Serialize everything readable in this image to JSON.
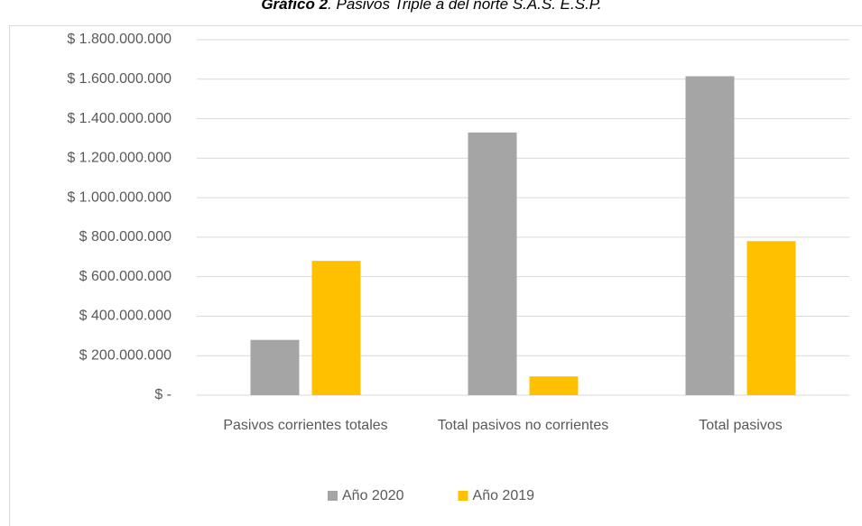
{
  "chart_data": {
    "type": "bar",
    "title_parts": [
      "Gráfico 2",
      ". Pasivos Triple a del norte S.A.S. E.S.P."
    ],
    "categories": [
      "Pasivos corrientes totales",
      "Total pasivos no corrientes",
      "Total pasivos"
    ],
    "series": [
      {
        "name": "Año 2020",
        "color": "#a5a5a5",
        "values": [
          280000000,
          1330000000,
          1615000000
        ]
      },
      {
        "name": "Año 2019",
        "color": "#ffc000",
        "values": [
          680000000,
          95000000,
          780000000
        ]
      }
    ],
    "ylim": [
      0,
      1800000000
    ],
    "yticks": [
      {
        "value": 0,
        "label": "$ -"
      },
      {
        "value": 200000000,
        "label": "$ 200.000.000"
      },
      {
        "value": 400000000,
        "label": "$ 400.000.000"
      },
      {
        "value": 600000000,
        "label": "$ 600.000.000"
      },
      {
        "value": 800000000,
        "label": "$ 800.000.000"
      },
      {
        "value": 1000000000,
        "label": "$ 1.000.000.000"
      },
      {
        "value": 1200000000,
        "label": "$ 1.200.000.000"
      },
      {
        "value": 1400000000,
        "label": "$ 1.400.000.000"
      },
      {
        "value": 1600000000,
        "label": "$ 1.600.000.000"
      },
      {
        "value": 1800000000,
        "label": "$ 1.800.000.000"
      }
    ],
    "grid": true,
    "legend": "bottom"
  }
}
